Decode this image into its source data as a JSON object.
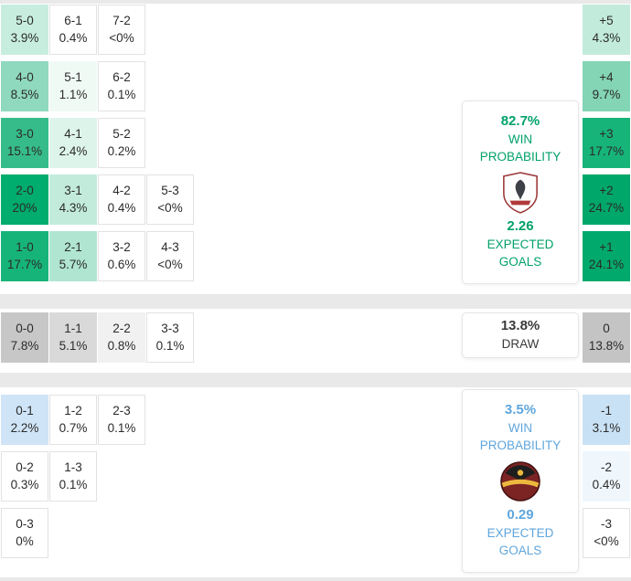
{
  "colors": {
    "page_bg": "#E9E9E9",
    "section_bg": "#FFFFFF",
    "cell_border": "#E2E2E2",
    "cell_text": "#2B2B2B",
    "home_accent": "#00A269",
    "draw_accent": "#3A3A3A",
    "away_accent": "#5FA6DC"
  },
  "chart_data": {
    "type": "heatmap",
    "description": "Correct score probability matrix with win probability, expected goals and goal-difference probabilities for home win, draw and away win outcomes",
    "legend_position": "none",
    "grid": "off",
    "sections": [
      {
        "id": "home",
        "outcome": "home_win",
        "accent": "#00A269",
        "win_probability": "82.7%",
        "win_probability_label": "WIN PROBABILITY",
        "expected_goals": "2.26",
        "expected_goals_label": "EXPECTED GOALS",
        "logo": "home-team-crest-icon",
        "score_rows": [
          [
            {
              "score": "5-0",
              "pct": "3.9%",
              "bg": "#C7EDDE"
            },
            {
              "score": "6-1",
              "pct": "0.4%",
              "bg": "#FFFFFF"
            },
            {
              "score": "7-2",
              "pct": "<0%",
              "bg": "#FFFFFF"
            }
          ],
          [
            {
              "score": "4-0",
              "pct": "8.5%",
              "bg": "#8FD9BE"
            },
            {
              "score": "5-1",
              "pct": "1.1%",
              "bg": "#EFFAF5"
            },
            {
              "score": "6-2",
              "pct": "0.1%",
              "bg": "#FFFFFF"
            }
          ],
          [
            {
              "score": "3-0",
              "pct": "15.1%",
              "bg": "#36BC8A"
            },
            {
              "score": "4-1",
              "pct": "2.4%",
              "bg": "#DDF4EA"
            },
            {
              "score": "5-2",
              "pct": "0.2%",
              "bg": "#FFFFFF"
            }
          ],
          [
            {
              "score": "2-0",
              "pct": "20%",
              "bg": "#00AC6E"
            },
            {
              "score": "3-1",
              "pct": "4.3%",
              "bg": "#C2EBDB"
            },
            {
              "score": "4-2",
              "pct": "0.4%",
              "bg": "#FFFFFF"
            },
            {
              "score": "5-3",
              "pct": "<0%",
              "bg": "#FFFFFF"
            }
          ],
          [
            {
              "score": "1-0",
              "pct": "17.7%",
              "bg": "#17B47A"
            },
            {
              "score": "2-1",
              "pct": "5.7%",
              "bg": "#AFE5D1"
            },
            {
              "score": "3-2",
              "pct": "0.6%",
              "bg": "#FFFFFF"
            },
            {
              "score": "4-3",
              "pct": "<0%",
              "bg": "#FFFFFF"
            }
          ]
        ],
        "goal_diffs": [
          {
            "label": "+5",
            "pct": "4.3%",
            "bg": "#C2EBDB"
          },
          {
            "label": "+4",
            "pct": "9.7%",
            "bg": "#83D5B6"
          },
          {
            "label": "+3",
            "pct": "17.7%",
            "bg": "#17B47A"
          },
          {
            "label": "+2",
            "pct": "24.7%",
            "bg": "#00A76B"
          },
          {
            "label": "+1",
            "pct": "24.1%",
            "bg": "#02A96D"
          }
        ]
      },
      {
        "id": "draw",
        "outcome": "draw",
        "accent": "#3A3A3A",
        "probability": "13.8%",
        "label": "DRAW",
        "score_rows": [
          [
            {
              "score": "0-0",
              "pct": "7.8%",
              "bg": "#C7C7C7"
            },
            {
              "score": "1-1",
              "pct": "5.1%",
              "bg": "#D9D9D9"
            },
            {
              "score": "2-2",
              "pct": "0.8%",
              "bg": "#F1F1F1"
            },
            {
              "score": "3-3",
              "pct": "0.1%",
              "bg": "#FFFFFF"
            }
          ]
        ],
        "goal_diffs": [
          {
            "label": "0",
            "pct": "13.8%",
            "bg": "#C4C4C4"
          }
        ]
      },
      {
        "id": "away",
        "outcome": "away_win",
        "accent": "#5FA6DC",
        "win_probability": "3.5%",
        "win_probability_label": "WIN PROBABILITY",
        "expected_goals": "0.29",
        "expected_goals_label": "EXPECTED GOALS",
        "logo": "away-team-crest-icon",
        "score_rows": [
          [
            {
              "score": "0-1",
              "pct": "2.2%",
              "bg": "#CFE4F6"
            },
            {
              "score": "1-2",
              "pct": "0.7%",
              "bg": "#FFFFFF"
            },
            {
              "score": "2-3",
              "pct": "0.1%",
              "bg": "#FFFFFF"
            }
          ],
          [
            {
              "score": "0-2",
              "pct": "0.3%",
              "bg": "#FFFFFF"
            },
            {
              "score": "1-3",
              "pct": "0.1%",
              "bg": "#FFFFFF"
            }
          ],
          [
            {
              "score": "0-3",
              "pct": "0%",
              "bg": "#FFFFFF"
            }
          ]
        ],
        "goal_diffs": [
          {
            "label": "-1",
            "pct": "3.1%",
            "bg": "#C9E1F4"
          },
          {
            "label": "-2",
            "pct": "0.4%",
            "bg": "#EFF7FD"
          },
          {
            "label": "-3",
            "pct": "<0%",
            "bg": "#FFFFFF"
          }
        ]
      }
    ]
  }
}
